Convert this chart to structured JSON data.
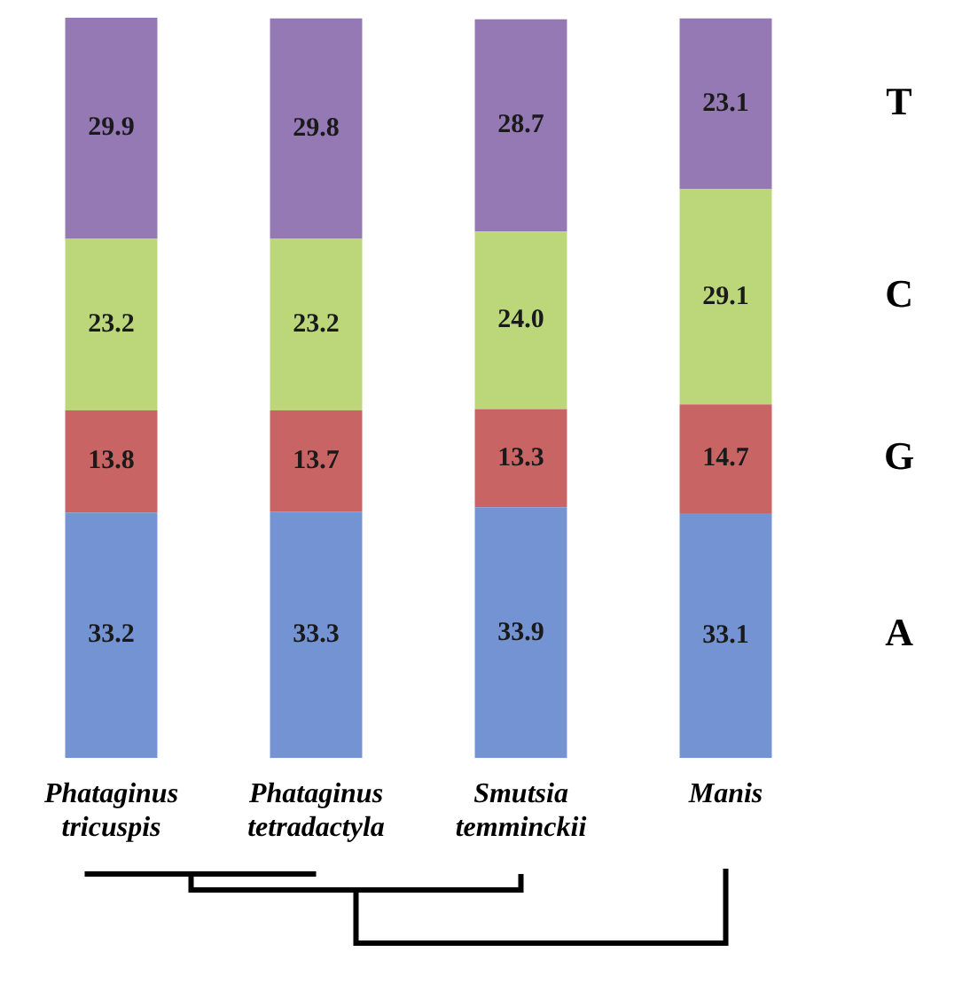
{
  "chart_data": {
    "type": "bar",
    "stacked": true,
    "data_labels": true,
    "tick_labels": "x",
    "ylim": [
      0,
      100.1
    ],
    "legend": false,
    "categories": [
      "Phataginus tricuspis",
      "Phataginus tetradactyla",
      "Smutsia temminckii",
      "Manis"
    ],
    "series": [
      {
        "name": "A",
        "color": "#7393d2",
        "values": [
          33.2,
          33.3,
          33.9,
          33.1
        ]
      },
      {
        "name": "G",
        "color": "#c96464",
        "values": [
          13.8,
          13.7,
          13.3,
          14.7
        ]
      },
      {
        "name": "C",
        "color": "#bcd77a",
        "values": [
          23.2,
          23.2,
          24.0,
          29.1
        ],
        "value_labels": [
          "23.2",
          "23.2",
          "24.0",
          "29.1"
        ]
      },
      {
        "name": "T",
        "color": "#9479b5",
        "values": [
          29.9,
          29.8,
          28.7,
          23.1
        ]
      }
    ]
  }
}
